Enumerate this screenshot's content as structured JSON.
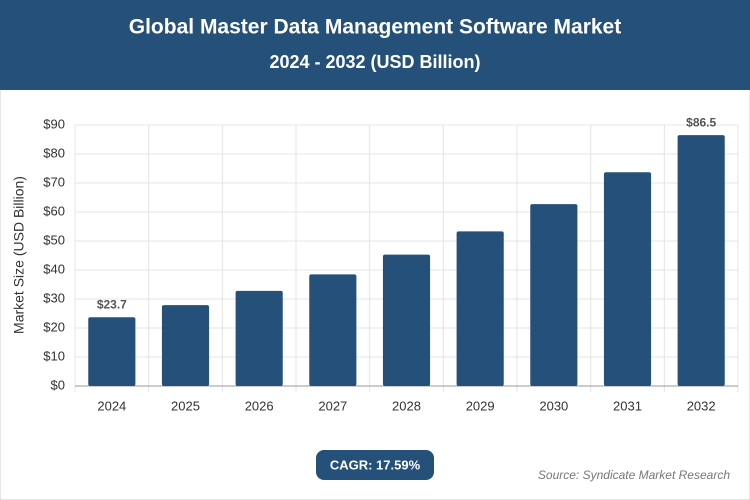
{
  "chart_data": {
    "type": "bar",
    "title": "Global Master Data Management Software Market",
    "subtitle": "2024 - 2032 (USD Billion)",
    "y_label": "Market Size (USD Billion)",
    "categories": [
      "2024",
      "2025",
      "2026",
      "2027",
      "2028",
      "2029",
      "2030",
      "2031",
      "2032"
    ],
    "values": [
      23.7,
      27.9,
      32.8,
      38.5,
      45.3,
      53.3,
      62.7,
      73.7,
      86.5
    ],
    "value_labels": [
      "$23.7",
      null,
      null,
      null,
      null,
      null,
      null,
      null,
      "$86.5"
    ],
    "color": "#25507a",
    "ylim": [
      0,
      90
    ],
    "yticks": [
      {
        "value": 0,
        "label": "$0"
      },
      {
        "value": 10,
        "label": "$10"
      },
      {
        "value": 20,
        "label": "$20"
      },
      {
        "value": 30,
        "label": "$30"
      },
      {
        "value": 40,
        "label": "$40"
      },
      {
        "value": 50,
        "label": "$50"
      },
      {
        "value": 60,
        "label": "$60"
      },
      {
        "value": 70,
        "label": "$70"
      },
      {
        "value": 80,
        "label": "$80"
      },
      {
        "value": 90,
        "label": "$90"
      }
    ],
    "grid": true,
    "cagr": "CAGR: 17.59%",
    "source": "Source: Syndicate Market Research"
  }
}
